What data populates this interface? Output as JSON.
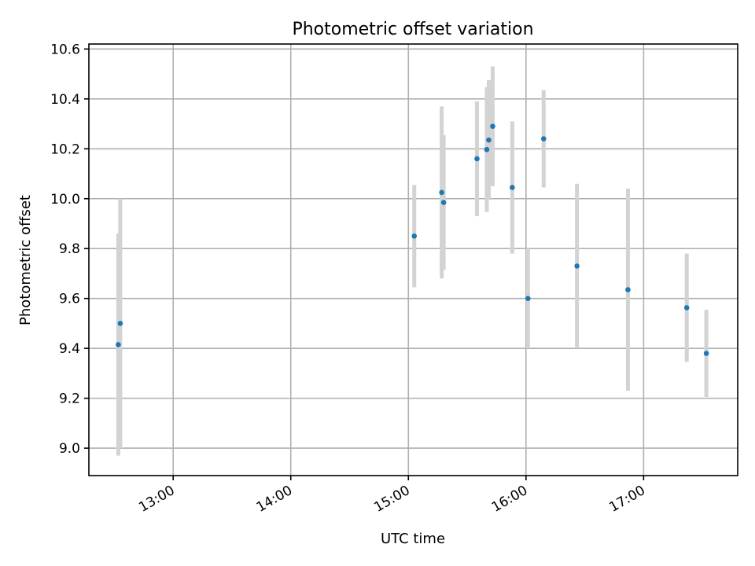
{
  "chart_data": {
    "type": "scatter",
    "title": "Photometric offset variation",
    "xlabel": "UTC time",
    "ylabel": "Photometric offset",
    "x_tick_labels": [
      "13:00",
      "14:00",
      "15:00",
      "16:00",
      "17:00"
    ],
    "x_tick_times": [
      "13:00",
      "14:00",
      "15:00",
      "16:00",
      "17:00"
    ],
    "y_ticks": [
      9.0,
      9.2,
      9.4,
      9.6,
      9.8,
      10.0,
      10.2,
      10.4,
      10.6
    ],
    "xlim": [
      "12:17",
      "17:48"
    ],
    "ylim": [
      8.89,
      10.62
    ],
    "grid": true,
    "series": [
      {
        "marker_color": "#1f77b4",
        "errorbar_color": "#d3d3d3",
        "points": [
          {
            "x": "12:32",
            "y": 9.415,
            "err": 0.445
          },
          {
            "x": "12:33",
            "y": 9.5,
            "err": 0.5
          },
          {
            "x": "15:03",
            "y": 9.85,
            "err": 0.205
          },
          {
            "x": "15:17",
            "y": 10.025,
            "err": 0.345
          },
          {
            "x": "15:18",
            "y": 9.985,
            "err": 0.27
          },
          {
            "x": "15:35",
            "y": 10.16,
            "err": 0.23
          },
          {
            "x": "15:40",
            "y": 10.197,
            "err": 0.25
          },
          {
            "x": "15:41",
            "y": 10.235,
            "err": 0.24
          },
          {
            "x": "15:43",
            "y": 10.29,
            "err": 0.24
          },
          {
            "x": "15:53",
            "y": 10.045,
            "err": 0.265
          },
          {
            "x": "16:01",
            "y": 9.6,
            "err": 0.2
          },
          {
            "x": "16:09",
            "y": 10.24,
            "err": 0.195
          },
          {
            "x": "16:26",
            "y": 9.73,
            "err": 0.33
          },
          {
            "x": "16:52",
            "y": 9.635,
            "err": 0.405
          },
          {
            "x": "17:22",
            "y": 9.563,
            "err": 0.217
          },
          {
            "x": "17:32",
            "y": 9.38,
            "err": 0.175
          }
        ]
      }
    ]
  }
}
